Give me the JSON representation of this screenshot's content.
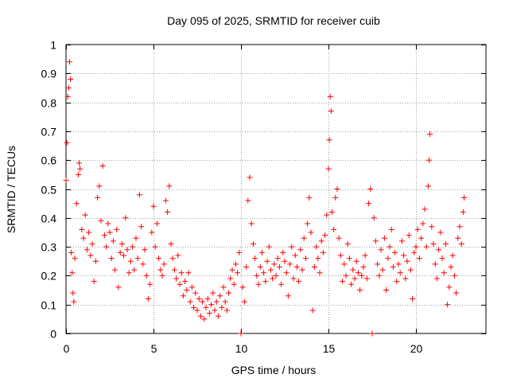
{
  "chart_data": {
    "type": "scatter",
    "title": "Day 095 of 2025, SRMTID for receiver cuib",
    "xlabel": "GPS time / hours",
    "ylabel": "SRMTID / TECUs",
    "xlim": [
      0,
      24
    ],
    "ylim": [
      0,
      1
    ],
    "xticks": [
      0,
      5,
      10,
      15,
      20
    ],
    "xtick_labels": [
      "0",
      "5",
      "10",
      "15",
      "20"
    ],
    "yticks": [
      0,
      0.1,
      0.2,
      0.3,
      0.4,
      0.5,
      0.6,
      0.7,
      0.8,
      0.9,
      1
    ],
    "ytick_labels": [
      "0",
      "0.1",
      "0.2",
      "0.3",
      "0.4",
      "0.5",
      "0.6",
      "0.7",
      "0.8",
      "0.9",
      "1"
    ],
    "grid": true,
    "marker": "+",
    "color": "#ff0000",
    "series": [
      {
        "name": "SRMTID",
        "points": [
          [
            0.0,
            0.53
          ],
          [
            0.05,
            0.66
          ],
          [
            0.1,
            0.82
          ],
          [
            0.15,
            0.85
          ],
          [
            0.2,
            0.94
          ],
          [
            0.25,
            0.88
          ],
          [
            0.3,
            0.28
          ],
          [
            0.35,
            0.21
          ],
          [
            0.4,
            0.14
          ],
          [
            0.45,
            0.11
          ],
          [
            0.5,
            0.26
          ],
          [
            0.6,
            0.45
          ],
          [
            0.7,
            0.55
          ],
          [
            0.75,
            0.59
          ],
          [
            0.8,
            0.57
          ],
          [
            0.9,
            0.36
          ],
          [
            1.0,
            0.33
          ],
          [
            1.1,
            0.41
          ],
          [
            1.2,
            0.29
          ],
          [
            1.3,
            0.35
          ],
          [
            1.4,
            0.27
          ],
          [
            1.5,
            0.31
          ],
          [
            1.6,
            0.18
          ],
          [
            1.7,
            0.25
          ],
          [
            1.8,
            0.47
          ],
          [
            1.9,
            0.51
          ],
          [
            2.0,
            0.39
          ],
          [
            2.1,
            0.58
          ],
          [
            2.2,
            0.34
          ],
          [
            2.3,
            0.3
          ],
          [
            2.4,
            0.38
          ],
          [
            2.5,
            0.35
          ],
          [
            2.6,
            0.26
          ],
          [
            2.7,
            0.32
          ],
          [
            2.8,
            0.22
          ],
          [
            2.9,
            0.36
          ],
          [
            3.0,
            0.16
          ],
          [
            3.1,
            0.28
          ],
          [
            3.2,
            0.31
          ],
          [
            3.3,
            0.27
          ],
          [
            3.4,
            0.4
          ],
          [
            3.5,
            0.29
          ],
          [
            3.6,
            0.21
          ],
          [
            3.7,
            0.25
          ],
          [
            3.8,
            0.3
          ],
          [
            3.9,
            0.22
          ],
          [
            4.0,
            0.33
          ],
          [
            4.1,
            0.26
          ],
          [
            4.2,
            0.48
          ],
          [
            4.3,
            0.37
          ],
          [
            4.4,
            0.24
          ],
          [
            4.5,
            0.29
          ],
          [
            4.6,
            0.2
          ],
          [
            4.7,
            0.12
          ],
          [
            4.8,
            0.17
          ],
          [
            4.9,
            0.35
          ],
          [
            5.0,
            0.44
          ],
          [
            5.1,
            0.3
          ],
          [
            5.2,
            0.38
          ],
          [
            5.3,
            0.26
          ],
          [
            5.4,
            0.22
          ],
          [
            5.5,
            0.2
          ],
          [
            5.6,
            0.24
          ],
          [
            5.7,
            0.46
          ],
          [
            5.8,
            0.42
          ],
          [
            5.9,
            0.51
          ],
          [
            6.0,
            0.31
          ],
          [
            6.1,
            0.26
          ],
          [
            6.2,
            0.22
          ],
          [
            6.3,
            0.19
          ],
          [
            6.4,
            0.27
          ],
          [
            6.5,
            0.17
          ],
          [
            6.6,
            0.21
          ],
          [
            6.7,
            0.13
          ],
          [
            6.8,
            0.18
          ],
          [
            6.9,
            0.15
          ],
          [
            7.0,
            0.21
          ],
          [
            7.1,
            0.11
          ],
          [
            7.2,
            0.16
          ],
          [
            7.3,
            0.09
          ],
          [
            7.4,
            0.14
          ],
          [
            7.5,
            0.08
          ],
          [
            7.6,
            0.12
          ],
          [
            7.7,
            0.06
          ],
          [
            7.8,
            0.11
          ],
          [
            7.9,
            0.05
          ],
          [
            8.0,
            0.09
          ],
          [
            8.1,
            0.12
          ],
          [
            8.2,
            0.07
          ],
          [
            8.3,
            0.1
          ],
          [
            8.4,
            0.14
          ],
          [
            8.5,
            0.08
          ],
          [
            8.6,
            0.11
          ],
          [
            8.7,
            0.06
          ],
          [
            8.8,
            0.13
          ],
          [
            8.9,
            0.09
          ],
          [
            9.0,
            0.16
          ],
          [
            9.1,
            0.11
          ],
          [
            9.2,
            0.08
          ],
          [
            9.3,
            0.14
          ],
          [
            9.4,
            0.19
          ],
          [
            9.5,
            0.22
          ],
          [
            9.6,
            0.17
          ],
          [
            9.7,
            0.24
          ],
          [
            9.8,
            0.21
          ],
          [
            9.9,
            0.28
          ],
          [
            10.0,
            0.0
          ],
          [
            10.1,
            0.16
          ],
          [
            10.2,
            0.11
          ],
          [
            10.3,
            0.23
          ],
          [
            10.4,
            0.46
          ],
          [
            10.5,
            0.54
          ],
          [
            10.6,
            0.38
          ],
          [
            10.7,
            0.31
          ],
          [
            10.8,
            0.26
          ],
          [
            10.9,
            0.2
          ],
          [
            11.0,
            0.17
          ],
          [
            11.1,
            0.23
          ],
          [
            11.2,
            0.28
          ],
          [
            11.3,
            0.21
          ],
          [
            11.4,
            0.18
          ],
          [
            11.5,
            0.25
          ],
          [
            11.6,
            0.3
          ],
          [
            11.7,
            0.22
          ],
          [
            11.8,
            0.19
          ],
          [
            11.9,
            0.24
          ],
          [
            12.0,
            0.2
          ],
          [
            12.1,
            0.26
          ],
          [
            12.2,
            0.23
          ],
          [
            12.3,
            0.17
          ],
          [
            12.4,
            0.28
          ],
          [
            12.5,
            0.25
          ],
          [
            12.6,
            0.21
          ],
          [
            12.7,
            0.13
          ],
          [
            12.8,
            0.24
          ],
          [
            12.9,
            0.3
          ],
          [
            13.0,
            0.19
          ],
          [
            13.1,
            0.27
          ],
          [
            13.2,
            0.23
          ],
          [
            13.3,
            0.18
          ],
          [
            13.4,
            0.29
          ],
          [
            13.5,
            0.22
          ],
          [
            13.6,
            0.33
          ],
          [
            13.7,
            0.26
          ],
          [
            13.8,
            0.38
          ],
          [
            13.9,
            0.47
          ],
          [
            14.0,
            0.35
          ],
          [
            14.1,
            0.08
          ],
          [
            14.2,
            0.23
          ],
          [
            14.3,
            0.3
          ],
          [
            14.4,
            0.26
          ],
          [
            14.5,
            0.21
          ],
          [
            14.6,
            0.32
          ],
          [
            14.7,
            0.28
          ],
          [
            14.8,
            0.34
          ],
          [
            14.9,
            0.41
          ],
          [
            15.0,
            0.57
          ],
          [
            15.05,
            0.67
          ],
          [
            15.1,
            0.82
          ],
          [
            15.15,
            0.77
          ],
          [
            15.2,
            0.42
          ],
          [
            15.3,
            0.36
          ],
          [
            15.4,
            0.47
          ],
          [
            15.5,
            0.5
          ],
          [
            15.6,
            0.33
          ],
          [
            15.7,
            0.27
          ],
          [
            15.8,
            0.18
          ],
          [
            15.9,
            0.24
          ],
          [
            16.0,
            0.2
          ],
          [
            16.1,
            0.31
          ],
          [
            16.2,
            0.26
          ],
          [
            16.3,
            0.17
          ],
          [
            16.4,
            0.22
          ],
          [
            16.5,
            0.19
          ],
          [
            16.6,
            0.25
          ],
          [
            16.7,
            0.21
          ],
          [
            16.8,
            0.15
          ],
          [
            16.9,
            0.2
          ],
          [
            17.0,
            0.23
          ],
          [
            17.1,
            0.27
          ],
          [
            17.2,
            0.19
          ],
          [
            17.3,
            0.45
          ],
          [
            17.4,
            0.5
          ],
          [
            17.5,
            0.0
          ],
          [
            17.6,
            0.4
          ],
          [
            17.7,
            0.32
          ],
          [
            17.8,
            0.24
          ],
          [
            17.9,
            0.2
          ],
          [
            18.0,
            0.29
          ],
          [
            18.1,
            0.22
          ],
          [
            18.2,
            0.33
          ],
          [
            18.3,
            0.15
          ],
          [
            18.4,
            0.26
          ],
          [
            18.5,
            0.3
          ],
          [
            18.6,
            0.36
          ],
          [
            18.7,
            0.23
          ],
          [
            18.8,
            0.28
          ],
          [
            18.9,
            0.18
          ],
          [
            19.0,
            0.24
          ],
          [
            19.1,
            0.21
          ],
          [
            19.2,
            0.32
          ],
          [
            19.3,
            0.27
          ],
          [
            19.4,
            0.19
          ],
          [
            19.5,
            0.25
          ],
          [
            19.6,
            0.34
          ],
          [
            19.7,
            0.22
          ],
          [
            19.8,
            0.12
          ],
          [
            19.9,
            0.28
          ],
          [
            20.0,
            0.3
          ],
          [
            20.1,
            0.36
          ],
          [
            20.2,
            0.26
          ],
          [
            20.3,
            0.33
          ],
          [
            20.4,
            0.38
          ],
          [
            20.5,
            0.43
          ],
          [
            20.6,
            0.3
          ],
          [
            20.7,
            0.51
          ],
          [
            20.75,
            0.6
          ],
          [
            20.8,
            0.69
          ],
          [
            20.9,
            0.37
          ],
          [
            21.0,
            0.31
          ],
          [
            21.1,
            0.24
          ],
          [
            21.2,
            0.19
          ],
          [
            21.3,
            0.29
          ],
          [
            21.4,
            0.35
          ],
          [
            21.5,
            0.26
          ],
          [
            21.6,
            0.21
          ],
          [
            21.7,
            0.31
          ],
          [
            21.8,
            0.1
          ],
          [
            21.9,
            0.16
          ],
          [
            22.0,
            0.23
          ],
          [
            22.1,
            0.27
          ],
          [
            22.2,
            0.2
          ],
          [
            22.3,
            0.14
          ],
          [
            22.4,
            0.33
          ],
          [
            22.5,
            0.37
          ],
          [
            22.6,
            0.31
          ],
          [
            22.7,
            0.42
          ],
          [
            22.75,
            0.47
          ]
        ]
      }
    ]
  }
}
